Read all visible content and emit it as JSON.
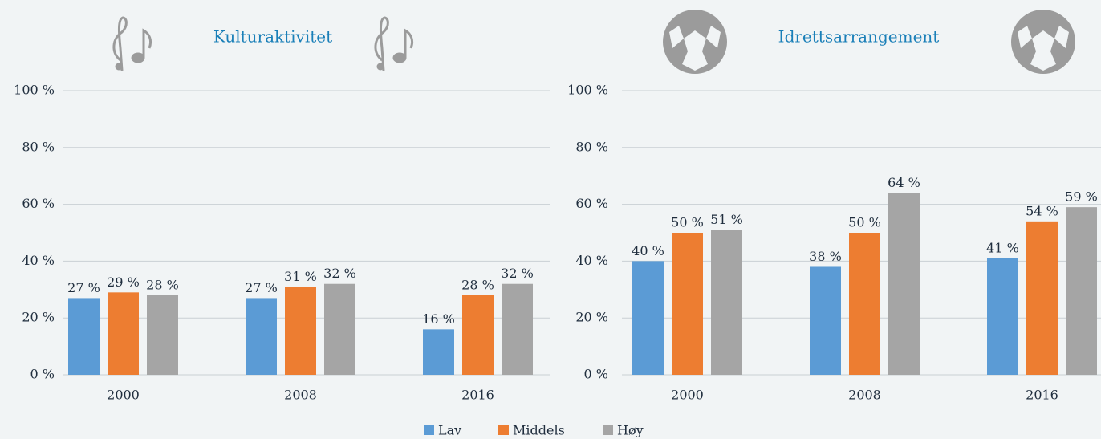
{
  "chart_data": [
    {
      "type": "bar",
      "title": "Kulturaktivitet",
      "categories": [
        "2000",
        "2008",
        "2016"
      ],
      "series": [
        {
          "name": "Lav",
          "color": "#5b9bd5",
          "values": [
            27,
            27,
            16
          ],
          "value_labels": [
            "27 %",
            "27 %",
            "16 %"
          ]
        },
        {
          "name": "Middels",
          "color": "#ed7d31",
          "values": [
            29,
            31,
            28
          ],
          "value_labels": [
            "29 %",
            "31 %",
            "28 %"
          ]
        },
        {
          "name": "Høy",
          "color": "#a5a5a5",
          "values": [
            28,
            32,
            32
          ],
          "value_labels": [
            "28 %",
            "32 %",
            "32 %"
          ]
        }
      ],
      "ylim": [
        0,
        100
      ],
      "yticks": [
        {
          "value": 0,
          "label": "0 %"
        },
        {
          "value": 20,
          "label": "20 %"
        },
        {
          "value": 40,
          "label": "40 %"
        },
        {
          "value": 60,
          "label": "60 %"
        },
        {
          "value": 80,
          "label": "80 %"
        },
        {
          "value": 100,
          "label": "100 %"
        }
      ],
      "grid": true
    },
    {
      "type": "bar",
      "title": "Idrettsarrangement",
      "categories": [
        "2000",
        "2008",
        "2016"
      ],
      "series": [
        {
          "name": "Lav",
          "color": "#5b9bd5",
          "values": [
            40,
            38,
            41
          ],
          "value_labels": [
            "40 %",
            "38 %",
            "41 %"
          ]
        },
        {
          "name": "Middels",
          "color": "#ed7d31",
          "values": [
            50,
            50,
            54
          ],
          "value_labels": [
            "50 %",
            "50 %",
            "54 %"
          ]
        },
        {
          "name": "Høy",
          "color": "#a5a5a5",
          "values": [
            51,
            64,
            59
          ],
          "value_labels": [
            "51 %",
            "64 %",
            "59 %"
          ]
        }
      ],
      "ylim": [
        0,
        100
      ],
      "yticks": [
        {
          "value": 0,
          "label": "0 %"
        },
        {
          "value": 20,
          "label": "20 %"
        },
        {
          "value": 40,
          "label": "40 %"
        },
        {
          "value": 60,
          "label": "60 %"
        },
        {
          "value": 80,
          "label": "80 %"
        },
        {
          "value": 100,
          "label": "100 %"
        }
      ],
      "grid": true
    }
  ]
}
